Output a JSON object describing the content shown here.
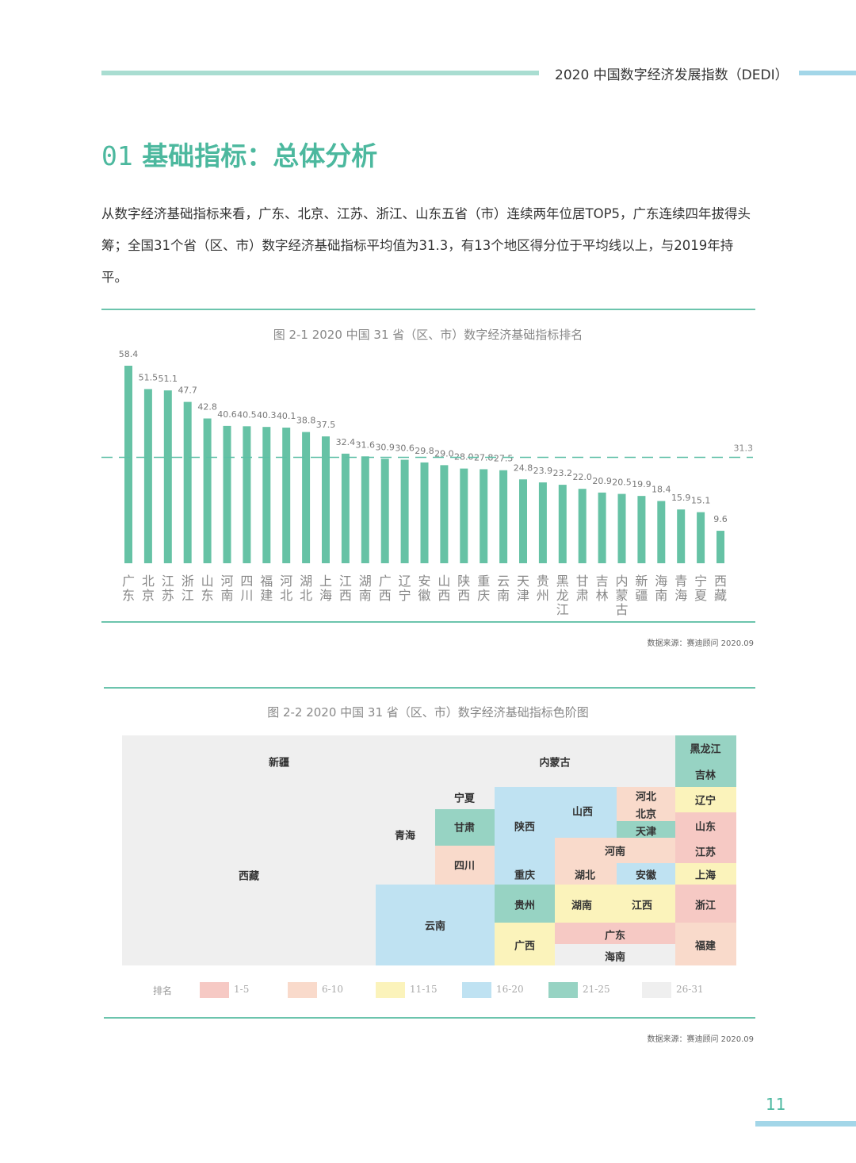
{
  "header": {
    "title": "2020 中国数字经济发展指数（DEDI）"
  },
  "section": {
    "number": "01",
    "title": "基础指标：总体分析"
  },
  "paragraph": "从数字经济基础指标来看，广东、北京、江苏、浙江、山东五省（市）连续两年位居TOP5，广东连续四年拔得头筹；全国31个省（区、市）数字经济基础指标平均值为31.3，有13个地区得分位于平均线以上，与2019年持平。",
  "figure1": {
    "title": "图 2-1  2020 中国 31 省（区、市）数字经济基础指标排名",
    "source": "数据来源：赛迪顾问 2020.09"
  },
  "figure2": {
    "title": "图 2-2  2020 中国 31 省（区、市）数字经济基础指标色阶图",
    "source": "数据来源：赛迪顾问 2020.09"
  },
  "chart_data": {
    "type": "bar",
    "categories": [
      "广东",
      "北京",
      "江苏",
      "浙江",
      "山东",
      "河南",
      "四川",
      "福建",
      "河北",
      "湖北",
      "上海",
      "江西",
      "湖南",
      "广西",
      "辽宁",
      "安徽",
      "山西",
      "陕西",
      "重庆",
      "云南",
      "天津",
      "贵州",
      "黑龙江",
      "甘肃",
      "吉林",
      "内蒙古",
      "新疆",
      "海南",
      "青海",
      "宁夏",
      "西藏"
    ],
    "values": [
      58.4,
      51.5,
      51.1,
      47.7,
      42.8,
      40.6,
      40.5,
      40.3,
      40.1,
      38.8,
      37.5,
      32.4,
      31.6,
      30.9,
      30.6,
      29.8,
      29.0,
      28.0,
      27.8,
      27.5,
      24.8,
      23.9,
      23.2,
      22.0,
      20.9,
      20.5,
      19.9,
      18.4,
      15.9,
      15.1,
      9.6
    ],
    "average": {
      "value": 31.3,
      "label": "31.3",
      "style": "dashed"
    },
    "ylim": [
      0,
      60
    ],
    "grid": false,
    "bar_color": "#66c2a5"
  },
  "tile_map": {
    "legend_title": "排名",
    "legend": [
      {
        "label": "1-5",
        "color": "#f6c9c4"
      },
      {
        "label": "6-10",
        "color": "#f9dacb"
      },
      {
        "label": "11-15",
        "color": "#fbf3bb"
      },
      {
        "label": "16-20",
        "color": "#bfe2f2"
      },
      {
        "label": "21-25",
        "color": "#97d3c3"
      },
      {
        "label": "26-31",
        "color": "#efefef"
      }
    ],
    "regions": [
      {
        "name": "新疆",
        "rank_group": "26-31"
      },
      {
        "name": "内蒙古",
        "rank_group": "26-31"
      },
      {
        "name": "黑龙江",
        "rank_group": "21-25"
      },
      {
        "name": "吉林",
        "rank_group": "21-25"
      },
      {
        "name": "宁夏",
        "rank_group": "26-31"
      },
      {
        "name": "青海",
        "rank_group": "26-31"
      },
      {
        "name": "西藏",
        "rank_group": "26-31"
      },
      {
        "name": "甘肃",
        "rank_group": "21-25"
      },
      {
        "name": "四川",
        "rank_group": "6-10"
      },
      {
        "name": "陕西",
        "rank_group": "16-20"
      },
      {
        "name": "重庆",
        "rank_group": "16-20"
      },
      {
        "name": "山西",
        "rank_group": "16-20"
      },
      {
        "name": "河北",
        "rank_group": "6-10"
      },
      {
        "name": "北京",
        "rank_group": "1-5"
      },
      {
        "name": "天津",
        "rank_group": "21-25"
      },
      {
        "name": "辽宁",
        "rank_group": "11-15"
      },
      {
        "name": "山东",
        "rank_group": "1-5"
      },
      {
        "name": "江苏",
        "rank_group": "1-5"
      },
      {
        "name": "上海",
        "rank_group": "11-15"
      },
      {
        "name": "河南",
        "rank_group": "6-10"
      },
      {
        "name": "湖北",
        "rank_group": "6-10"
      },
      {
        "name": "安徽",
        "rank_group": "16-20"
      },
      {
        "name": "浙江",
        "rank_group": "1-5"
      },
      {
        "name": "云南",
        "rank_group": "16-20"
      },
      {
        "name": "贵州",
        "rank_group": "21-25"
      },
      {
        "name": "湖南",
        "rank_group": "11-15"
      },
      {
        "name": "江西",
        "rank_group": "11-15"
      },
      {
        "name": "广西",
        "rank_group": "11-15"
      },
      {
        "name": "广东",
        "rank_group": "1-5"
      },
      {
        "name": "海南",
        "rank_group": "26-31"
      },
      {
        "name": "福建",
        "rank_group": "6-10"
      }
    ]
  },
  "page_number": "11"
}
